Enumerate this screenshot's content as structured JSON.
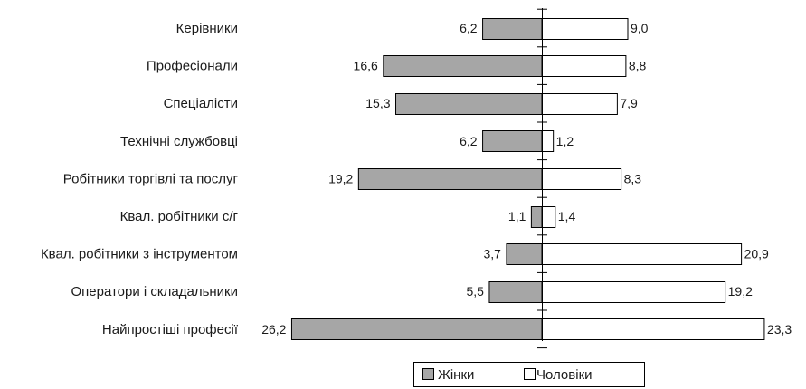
{
  "chart_data": {
    "type": "bar",
    "orientation": "horizontal",
    "layout": "diverging",
    "categories": [
      "Керівники",
      "Професіонали",
      "Спеціалісти",
      "Технічні службовці",
      "Робітники торгівлі та послуг",
      "Квал. робітники с/г",
      "Квал. робітники з інструментом",
      "Оператори і складальники",
      "Найпростіші професії"
    ],
    "series": [
      {
        "name": "Жінки",
        "direction": "left",
        "color": "#a6a6a6",
        "values": [
          6.2,
          16.6,
          15.3,
          6.2,
          19.2,
          1.1,
          3.7,
          5.5,
          26.2
        ],
        "labels": [
          "6,2",
          "16,6",
          "15,3",
          "6,2",
          "19,2",
          "1,1",
          "3,7",
          "5,5",
          "26,2"
        ]
      },
      {
        "name": "Чоловіки",
        "direction": "right",
        "color": "#ffffff",
        "values": [
          9.0,
          8.8,
          7.9,
          1.2,
          8.3,
          1.4,
          20.9,
          19.2,
          23.3
        ],
        "labels": [
          "9,0",
          "8,8",
          "7,9",
          "1,2",
          "8,3",
          "1,4",
          "20,9",
          "19,2",
          "23,3"
        ]
      }
    ],
    "legend": {
      "position": "bottom",
      "items": [
        "Жінки",
        "Чоловіки"
      ]
    },
    "grid": false
  }
}
